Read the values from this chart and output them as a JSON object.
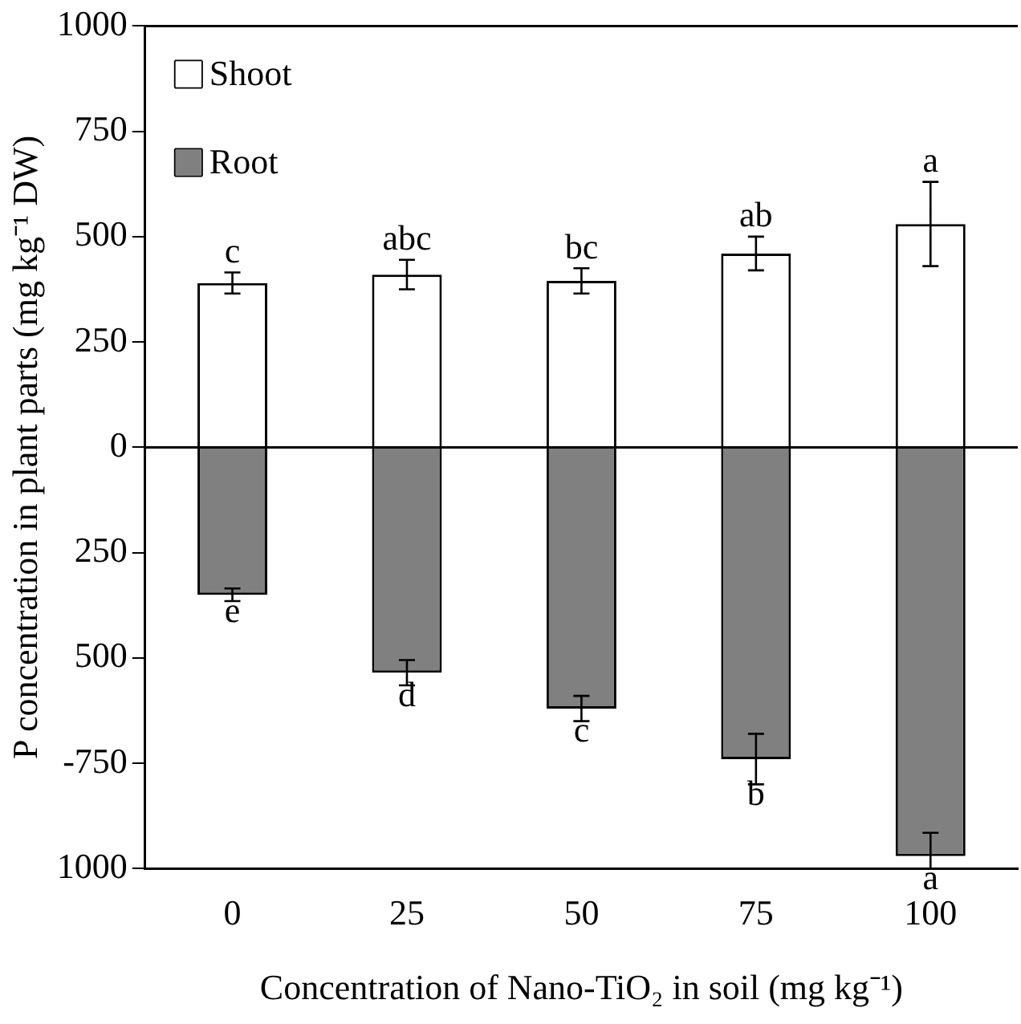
{
  "chart_data": {
    "type": "bar",
    "stacked": true,
    "xlabel": "Concentration of Nano-TiO₂ in soil (mg kg⁻¹)",
    "ylabel": "P concentration in plant parts (mg kg⁻¹ DW)",
    "categories": [
      "0",
      "25",
      "50",
      "75",
      "100"
    ],
    "series": [
      {
        "name": "Shoot",
        "color": "#ffffff",
        "values": [
          390,
          410,
          395,
          460,
          530
        ],
        "errors": [
          25,
          35,
          30,
          40,
          100
        ]
      },
      {
        "name": "Root",
        "color": "#808080",
        "values": [
          -350,
          -535,
          -620,
          -740,
          -970
        ],
        "errors": [
          15,
          30,
          30,
          60,
          [
            -1000,
            -915
          ]
        ]
      }
    ],
    "ylim": [
      -1000,
      1000
    ],
    "yticks": [
      {
        "value": -1000,
        "label": "1000"
      },
      {
        "value": -750,
        "label": "-750"
      },
      {
        "value": -500,
        "label": "500"
      },
      {
        "value": -250,
        "label": "250"
      },
      0,
      250,
      500,
      750,
      1000
    ],
    "annotations": [
      {
        "text": "c",
        "x": "0",
        "y": 415
      },
      {
        "text": "abc",
        "x": "25",
        "y": 445
      },
      {
        "text": "bc",
        "x": "50",
        "y": 425
      },
      {
        "text": "ab",
        "x": "75",
        "y": 500
      },
      {
        "text": "a",
        "x": "100",
        "y": 630
      },
      {
        "text": "e",
        "x": "0",
        "y": -365
      },
      {
        "text": "d",
        "x": "25",
        "y": -565
      },
      {
        "text": "c",
        "x": "50",
        "y": -650
      },
      {
        "text": "b",
        "x": "75",
        "y": -800
      },
      {
        "text": "a",
        "x": "100",
        "y": -1000
      }
    ],
    "ref_lines": [
      {
        "axis": "y",
        "value": 0,
        "color": "#000000"
      }
    ],
    "grid": false,
    "legend": "top left"
  }
}
